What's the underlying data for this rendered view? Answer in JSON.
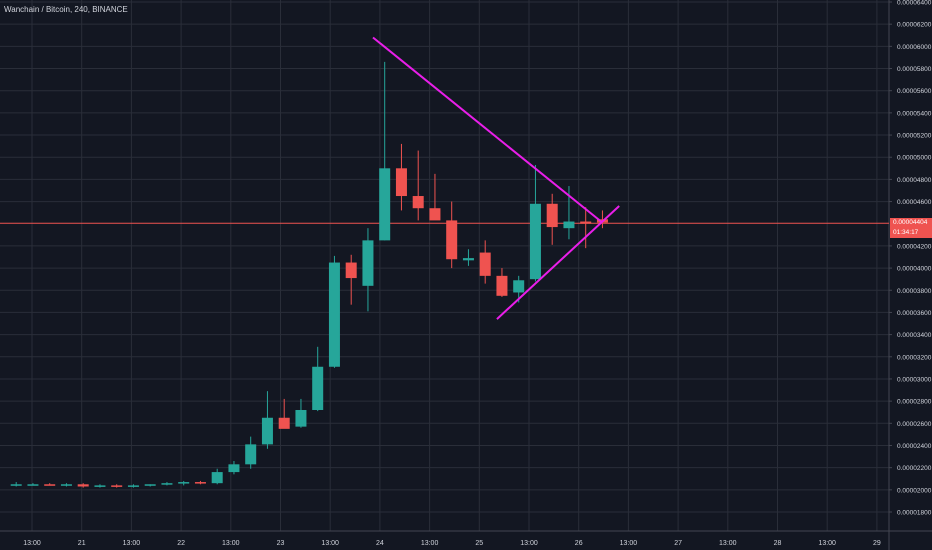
{
  "header": {
    "title": "Wanchain / Bitcoin, 240, BINANCE"
  },
  "price_scale": {
    "ticks": [
      "0.00006400",
      "0.00006200",
      "0.00006000",
      "0.00005800",
      "0.00005600",
      "0.00005400",
      "0.00005200",
      "0.00005000",
      "0.00004800",
      "0.00004600",
      "0.00004200",
      "0.00004000",
      "0.00003800",
      "0.00003600",
      "0.00003400",
      "0.00003200",
      "0.00003000",
      "0.00002800",
      "0.00002600",
      "0.00002400",
      "0.00002200",
      "0.00002000",
      "0.00001800"
    ],
    "current_price_label": "0.00004404",
    "countdown_label": "01:34:17"
  },
  "time_scale": {
    "ticks": [
      "13:00",
      "21",
      "13:00",
      "22",
      "13:00",
      "23",
      "13:00",
      "24",
      "13:00",
      "25",
      "13:00",
      "26",
      "13:00",
      "27",
      "13:00",
      "28",
      "13:00",
      "29"
    ]
  },
  "colors": {
    "background": "#131722",
    "grid": "#2a2e39",
    "up": "#26a69a",
    "down": "#ef5350",
    "trendline": "#e91ee9",
    "price_line": "#ef5350"
  },
  "chart_data": {
    "type": "candlestick",
    "title": "Wanchain / Bitcoin, 240, BINANCE",
    "ylim": [
      1.71e-05,
      6.42e-05
    ],
    "candles": [
      {
        "o": 2.05e-05,
        "h": 2.07e-05,
        "l": 2.03e-05,
        "c": 2.05e-05
      },
      {
        "o": 2.05e-05,
        "h": 2.06e-05,
        "l": 2.04e-05,
        "c": 2.05e-05
      },
      {
        "o": 2.05e-05,
        "h": 2.06e-05,
        "l": 2.04e-05,
        "c": 2.04e-05
      },
      {
        "o": 2.04e-05,
        "h": 2.06e-05,
        "l": 2.03e-05,
        "c": 2.05e-05
      },
      {
        "o": 2.05e-05,
        "h": 2.06e-05,
        "l": 2.02e-05,
        "c": 2.03e-05
      },
      {
        "o": 2.03e-05,
        "h": 2.05e-05,
        "l": 2.02e-05,
        "c": 2.04e-05
      },
      {
        "o": 2.04e-05,
        "h": 2.05e-05,
        "l": 2.02e-05,
        "c": 2.03e-05
      },
      {
        "o": 2.03e-05,
        "h": 2.05e-05,
        "l": 2.02e-05,
        "c": 2.04e-05
      },
      {
        "o": 2.04e-05,
        "h": 2.05e-05,
        "l": 2.03e-05,
        "c": 2.05e-05
      },
      {
        "o": 2.05e-05,
        "h": 2.07e-05,
        "l": 2.04e-05,
        "c": 2.06e-05
      },
      {
        "o": 2.06e-05,
        "h": 2.08e-05,
        "l": 2.04e-05,
        "c": 2.07e-05
      },
      {
        "o": 2.07e-05,
        "h": 2.08e-05,
        "l": 2.05e-05,
        "c": 2.06e-05
      },
      {
        "o": 2.06e-05,
        "h": 2.19e-05,
        "l": 2.05e-05,
        "c": 2.16e-05
      },
      {
        "o": 2.16e-05,
        "h": 2.26e-05,
        "l": 2.14e-05,
        "c": 2.23e-05
      },
      {
        "o": 2.23e-05,
        "h": 2.48e-05,
        "l": 2.19e-05,
        "c": 2.41e-05
      },
      {
        "o": 2.41e-05,
        "h": 2.89e-05,
        "l": 2.37e-05,
        "c": 2.65e-05
      },
      {
        "o": 2.65e-05,
        "h": 2.82e-05,
        "l": 2.56e-05,
        "c": 2.55e-05
      },
      {
        "o": 2.57e-05,
        "h": 2.82e-05,
        "l": 2.56e-05,
        "c": 2.72e-05
      },
      {
        "o": 2.72e-05,
        "h": 3.29e-05,
        "l": 2.71e-05,
        "c": 3.11e-05
      },
      {
        "o": 3.11e-05,
        "h": 4.11e-05,
        "l": 3.1e-05,
        "c": 4.05e-05
      },
      {
        "o": 4.05e-05,
        "h": 4.12e-05,
        "l": 3.67e-05,
        "c": 3.91e-05
      },
      {
        "o": 3.84e-05,
        "h": 4.36e-05,
        "l": 3.61e-05,
        "c": 4.25e-05
      },
      {
        "o": 4.25e-05,
        "h": 5.86e-05,
        "l": 4.25e-05,
        "c": 4.9e-05
      },
      {
        "o": 4.9e-05,
        "h": 5.12e-05,
        "l": 4.52e-05,
        "c": 4.65e-05
      },
      {
        "o": 4.65e-05,
        "h": 5.06e-05,
        "l": 4.43e-05,
        "c": 4.54e-05
      },
      {
        "o": 4.54e-05,
        "h": 4.85e-05,
        "l": 4.45e-05,
        "c": 4.43e-05
      },
      {
        "o": 4.43e-05,
        "h": 4.6e-05,
        "l": 4e-05,
        "c": 4.08e-05
      },
      {
        "o": 4.07e-05,
        "h": 4.17e-05,
        "l": 4.02e-05,
        "c": 4.09e-05
      },
      {
        "o": 4.14e-05,
        "h": 4.25e-05,
        "l": 3.86e-05,
        "c": 3.93e-05
      },
      {
        "o": 3.93e-05,
        "h": 4e-05,
        "l": 3.74e-05,
        "c": 3.75e-05
      },
      {
        "o": 3.78e-05,
        "h": 3.93e-05,
        "l": 3.69e-05,
        "c": 3.89e-05
      },
      {
        "o": 3.9e-05,
        "h": 4.93e-05,
        "l": 3.88e-05,
        "c": 4.58e-05
      },
      {
        "o": 4.58e-05,
        "h": 4.67e-05,
        "l": 4.21e-05,
        "c": 4.37e-05
      },
      {
        "o": 4.36e-05,
        "h": 4.74e-05,
        "l": 4.26e-05,
        "c": 4.42e-05
      },
      {
        "o": 4.42e-05,
        "h": 4.55e-05,
        "l": 4.18e-05,
        "c": 4.4e-05
      },
      {
        "o": 4.44e-05,
        "h": 4.52e-05,
        "l": 4.36e-05,
        "c": 4.41e-05
      }
    ],
    "trendlines": [
      {
        "name": "upper",
        "from": {
          "bar": 21.3,
          "price": 6.08e-05
        },
        "to": {
          "bar": 35.0,
          "price": 4.41e-05
        }
      },
      {
        "name": "lower",
        "from": {
          "bar": 28.7,
          "price": 3.54e-05
        },
        "to": {
          "bar": 36.0,
          "price": 4.56e-05
        }
      }
    ],
    "current_price": 4.404e-05
  }
}
